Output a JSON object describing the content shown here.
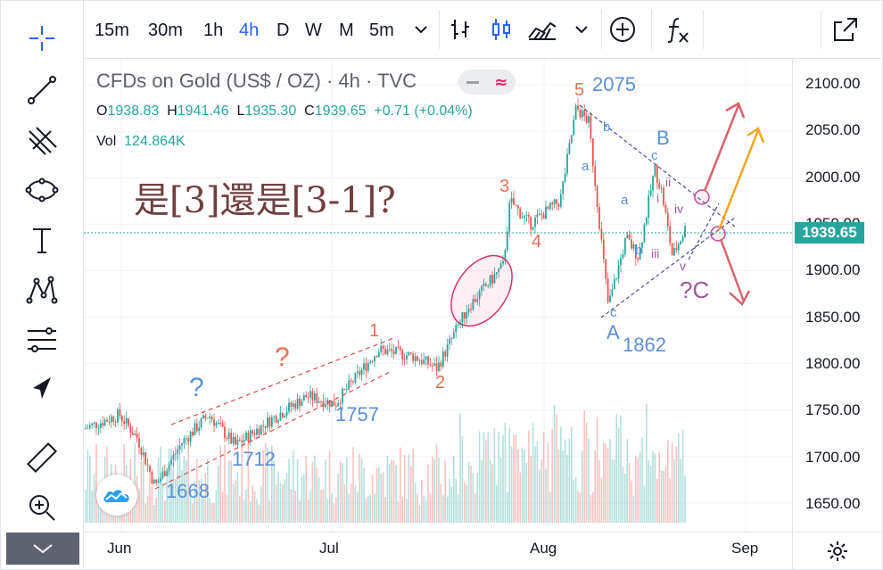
{
  "toolbar": {
    "timeframes": [
      "15m",
      "30m",
      "1h",
      "4h",
      "D",
      "W",
      "M",
      "5m"
    ],
    "active_timeframe": "4h"
  },
  "legend": {
    "title": "CFDs on Gold (US$ / OZ) · 4h · TVC",
    "open_label": "O",
    "open": "1938.83",
    "high_label": "H",
    "high": "1941.46",
    "low_label": "L",
    "low": "1935.30",
    "close_label": "C",
    "close": "1939.65",
    "change": "+0.71 (+0.04%)",
    "volume_label": "Vol",
    "volume": "124.864K"
  },
  "annotation_question": "是[3]還是[3-1]?",
  "price_axis": {
    "labels": [
      "2100.00",
      "2050.00",
      "2000.00",
      "1950.00",
      "1900.00",
      "1850.00",
      "1800.00",
      "1750.00",
      "1700.00",
      "1650.00"
    ],
    "last_price": "1939.65",
    "last_price_color": "#26a69a"
  },
  "time_axis": {
    "labels": [
      "Jun",
      "Jul",
      "Aug",
      "Sep"
    ]
  },
  "waves": {
    "w1": "1",
    "w2": "2",
    "w3": "3",
    "w4": "4",
    "w5": "5",
    "q1": "?",
    "q2": "?",
    "p1668": "1668",
    "p1712": "1712",
    "p1757": "1757",
    "p2075": "2075",
    "p1862": "1862",
    "A": "A",
    "B": "B",
    "C": "?C",
    "a1": "a",
    "b1": "b",
    "c1": "c",
    "a2": "a",
    "b2": "b",
    "c2": "c",
    "i": "i",
    "ii": "ii",
    "iii": "iii",
    "iv": "iv",
    "v": "v"
  },
  "colors": {
    "up": "#26a69a",
    "down": "#ef5350",
    "wave_red": "#e86f52",
    "wave_blue": "#5b8fd4",
    "wave_purple": "#9c5a9c",
    "arrow_orange": "#f5a623",
    "arrow_red": "#d9626b"
  }
}
